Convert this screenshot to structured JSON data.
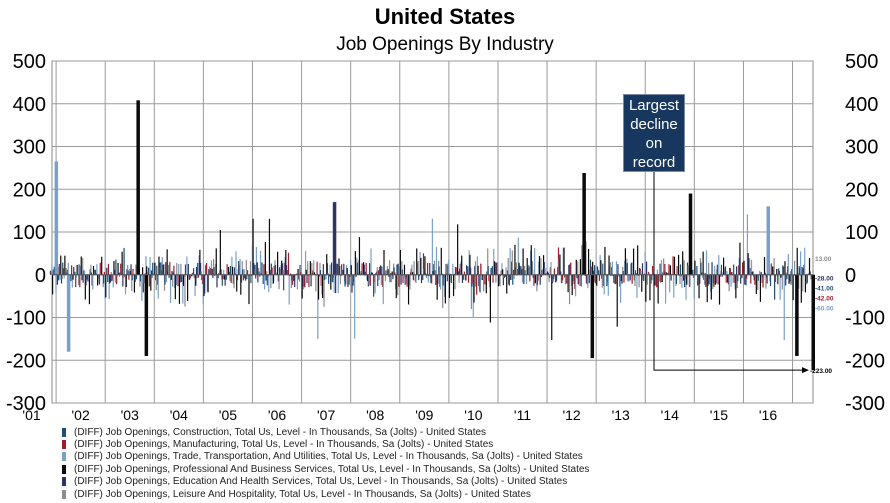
{
  "chart_data": {
    "type": "bar",
    "title": "United States",
    "subtitle": "Job Openings By Industry",
    "ylim": [
      -300,
      500
    ],
    "y_ticks": [
      500,
      400,
      300,
      200,
      100,
      0,
      -100,
      -200,
      -300
    ],
    "x_tick_labels": [
      "'01",
      "'02",
      "'03",
      "'04",
      "'05",
      "'06",
      "'07",
      "'08",
      "'09",
      "'10",
      "'11",
      "'12",
      "'13",
      "'14",
      "'15",
      "'16"
    ],
    "x_range": [
      "2000-12",
      "2016-06"
    ],
    "grid": true,
    "legend_position": "bottom",
    "annotation": "Largest decline on record",
    "end_value_labels": [
      "13.00",
      "-28.00",
      "-41.00",
      "-42.00",
      "-60.00",
      "-223.00"
    ],
    "series": [
      {
        "name": "(DIFF) Job Openings, Construction, Total Us, Level - In Thousands, Sa (Jolts) - United States",
        "color": "#1f4e79",
        "last_value": -41
      },
      {
        "name": "(DIFF) Job Openings, Manufacturing, Total Us, Level - In Thousands, Sa (Jolts) - United States",
        "color": "#a01c2e",
        "last_value": -42
      },
      {
        "name": "(DIFF) Job Openings, Trade, Transportation, And Utilities, Total Us, Level - In Thousands, Sa (Jolts) - United States",
        "color": "#7ba0c8",
        "last_value": -60
      },
      {
        "name": "(DIFF) Job Openings, Professional And Business Services, Total Us, Level - In Thousands, Sa (Jolts) - United States",
        "color": "#0a0a0a",
        "last_value": -223
      },
      {
        "name": "(DIFF) Job Openings, Education And Health Services, Total Us, Level - In Thousands, Sa (Jolts) - United States",
        "color": "#2e3566",
        "last_value": -28
      },
      {
        "name": "(DIFF) Job Openings, Leisure And Hospitality, Total Us, Level - In Thousands, Sa (Jolts) - United States",
        "color": "#8c8c8c",
        "last_value": 13
      }
    ],
    "notable_points": [
      {
        "series": "(DIFF) Job Openings, Professional And Business Services, Total Us, Level - In Thousands, Sa (Jolts) - United States",
        "x": "2002-09",
        "value": 408
      },
      {
        "series": "(DIFF) Job Openings, Professional And Business Services, Total Us, Level - In Thousands, Sa (Jolts) - United States",
        "x": "2002-11",
        "value": -190
      },
      {
        "series": "(DIFF) Job Openings, Trade, Transportation, And Utilities, Total Us, Level - In Thousands, Sa (Jolts) - United States",
        "x": "2001-01",
        "value": 265
      },
      {
        "series": "(DIFF) Job Openings, Trade, Transportation, And Utilities, Total Us, Level - In Thousands, Sa (Jolts) - United States",
        "x": "2001-04",
        "value": -180
      },
      {
        "series": "(DIFF) Job Openings, Professional And Business Services, Total Us, Level - In Thousands, Sa (Jolts) - United States",
        "x": "2011-10",
        "value": 238
      },
      {
        "series": "(DIFF) Job Openings, Professional And Business Services, Total Us, Level - In Thousands, Sa (Jolts) - United States",
        "x": "2011-12",
        "value": -195
      },
      {
        "series": "(DIFF) Job Openings, Professional And Business Services, Total Us, Level - In Thousands, Sa (Jolts) - United States",
        "x": "2013-12",
        "value": 190
      },
      {
        "series": "(DIFF) Job Openings, Education And Health Services, Total Us, Level - In Thousands, Sa (Jolts) - United States",
        "x": "2006-09",
        "value": 170
      },
      {
        "series": "(DIFF) Job Openings, Trade, Transportation, And Utilities, Total Us, Level - In Thousands, Sa (Jolts) - United States",
        "x": "2015-07",
        "value": 160
      },
      {
        "series": "(DIFF) Job Openings, Professional And Business Services, Total Us, Level - In Thousands, Sa (Jolts) - United States",
        "x": "2016-02",
        "value": -190
      },
      {
        "series": "(DIFF) Job Openings, Professional And Business Services, Total Us, Level - In Thousands, Sa (Jolts) - United States",
        "x": "2016-06",
        "value": -223
      }
    ]
  }
}
